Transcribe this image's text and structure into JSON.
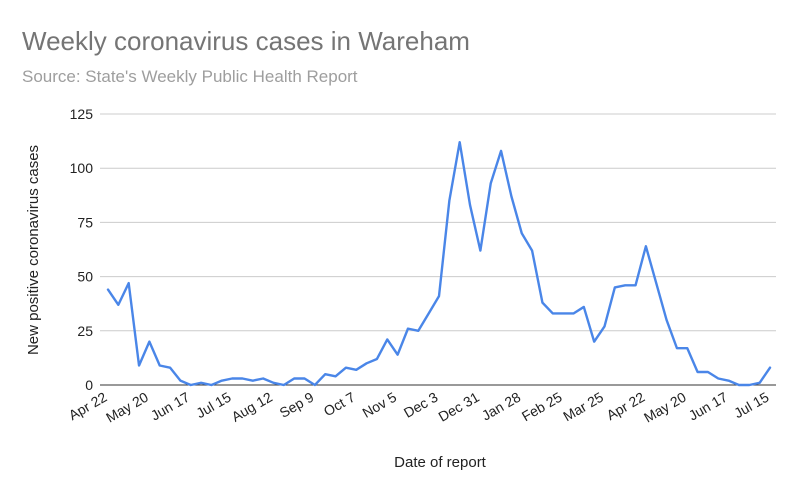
{
  "chart_data": {
    "type": "line",
    "title": "Weekly coronavirus cases in Wareham",
    "subtitle": "Source: State's Weekly Public Health Report",
    "xlabel": "Date of report",
    "ylabel": "New positive coronavirus cases",
    "ylim": [
      0,
      125
    ],
    "y_ticks": [
      0,
      25,
      50,
      75,
      100,
      125
    ],
    "grid": true,
    "x_tick_labels": [
      "Apr 22",
      "May 20",
      "Jun 17",
      "Jul 15",
      "Aug 12",
      "Sep 9",
      "Oct 7",
      "Nov 5",
      "Dec 3",
      "Dec 31",
      "Jan 28",
      "Feb 25",
      "Mar 25",
      "Apr 22",
      "May 20",
      "Jun 17",
      "Jul 15"
    ],
    "x_tick_every": 4,
    "series": [
      {
        "color": "#4a86e8",
        "values": [
          44,
          37,
          47,
          9,
          20,
          9,
          8,
          2,
          0,
          1,
          0,
          2,
          3,
          3,
          2,
          3,
          1,
          0,
          3,
          3,
          0,
          5,
          4,
          8,
          7,
          10,
          12,
          21,
          14,
          26,
          25,
          33,
          41,
          85,
          112,
          83,
          62,
          93,
          108,
          87,
          70,
          62,
          38,
          33,
          33,
          33,
          36,
          20,
          27,
          45,
          46,
          46,
          64,
          47,
          30,
          17,
          17,
          6,
          6,
          3,
          2,
          0,
          0,
          1,
          8
        ]
      }
    ]
  }
}
